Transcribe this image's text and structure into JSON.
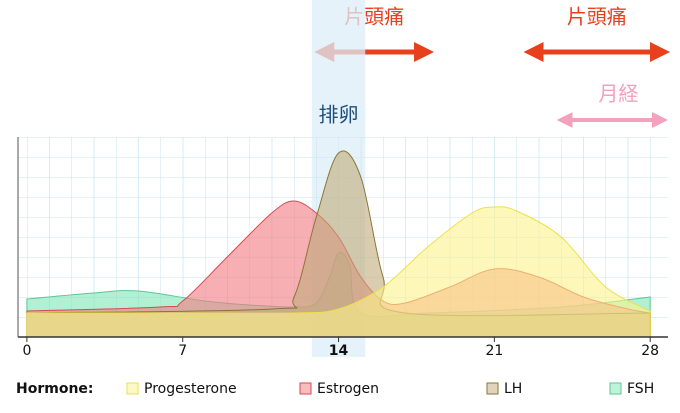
{
  "chart_data": {
    "type": "area",
    "xlim": [
      -0.4,
      28.8
    ],
    "ylim": [
      0,
      100
    ],
    "xticks": [
      0,
      7,
      14,
      21,
      28
    ],
    "bold_xtick": 14,
    "grid": true,
    "legend_title": "Hormone:",
    "legend_position": "bottom",
    "annotations": [
      {
        "text": "片頭痛",
        "x": [
          13.0,
          18.2
        ],
        "color": "#e8401c",
        "row": 0
      },
      {
        "text": "片頭痛",
        "x": [
          22.4,
          28.8
        ],
        "color": "#e8401c",
        "row": 0
      },
      {
        "text": "月経",
        "x": [
          23.8,
          28.8
        ],
        "color": "#f2a2bc",
        "row": 1
      },
      {
        "text": "排卵",
        "x": [
          12.8,
          15.2
        ],
        "color": "#1f4e7a",
        "row": 2
      }
    ],
    "series": [
      {
        "name": "FSH",
        "color": "#7fe6b8",
        "stroke": "#5cc796",
        "x": [
          0,
          3,
          5,
          8,
          10,
          12,
          13,
          13.6,
          14,
          14.5,
          15,
          18,
          24,
          28
        ],
        "values": [
          19,
          22,
          23,
          18,
          16,
          15,
          17,
          30,
          42,
          36,
          12,
          12,
          15,
          20
        ]
      },
      {
        "name": "Estrogen",
        "color": "#f47a80",
        "stroke": "#d9484f",
        "x": [
          0,
          6,
          7,
          9,
          11,
          12,
          13,
          14,
          15,
          16,
          17,
          19,
          21,
          23,
          25,
          27,
          28
        ],
        "values": [
          13,
          15,
          18,
          40,
          62,
          68,
          62,
          50,
          30,
          18,
          17,
          25,
          34,
          30,
          20,
          14,
          12
        ]
      },
      {
        "name": "LH",
        "color": "#c2ac7a",
        "stroke": "#8a7638",
        "x": [
          0,
          11,
          12,
          13,
          14,
          15,
          16,
          17,
          28
        ],
        "values": [
          12,
          14,
          20,
          60,
          92,
          80,
          30,
          12,
          12
        ]
      },
      {
        "name": "Progesterone",
        "color": "#fbf38a",
        "stroke": "#ece04a",
        "x": [
          0,
          7,
          12,
          14,
          16,
          18,
          20,
          21,
          22,
          24,
          26,
          28
        ],
        "values": [
          12,
          12,
          12,
          14,
          25,
          45,
          62,
          65,
          63,
          50,
          25,
          13
        ]
      }
    ],
    "legend_order": [
      3,
      1,
      2,
      0
    ]
  }
}
